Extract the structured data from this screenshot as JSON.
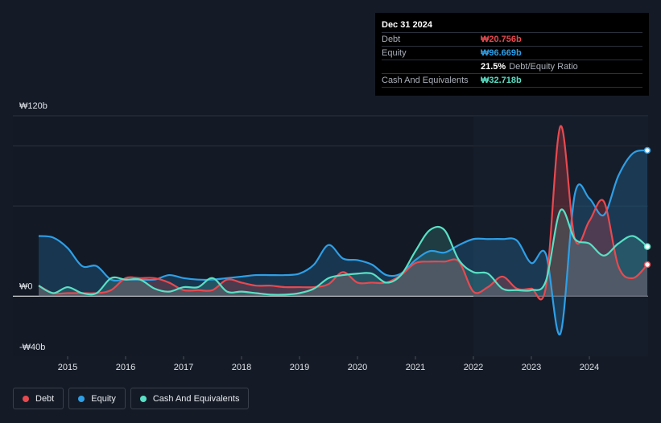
{
  "tooltip": {
    "date": "Dec 31 2024",
    "rows": [
      {
        "label": "Debt",
        "value": "₩20.756b",
        "color": "#e8494f"
      },
      {
        "label": "Equity",
        "value": "₩96.669b",
        "color": "#2e9fe6"
      },
      {
        "label": "",
        "value": "21.5%",
        "extra": "Debt/Equity Ratio",
        "color": "#ffffff"
      },
      {
        "label": "Cash And Equivalents",
        "value": "₩32.718b",
        "color": "#59e0c5"
      }
    ]
  },
  "legend": [
    {
      "label": "Debt",
      "color": "#e8494f"
    },
    {
      "label": "Equity",
      "color": "#2e9fe6"
    },
    {
      "label": "Cash And Equivalents",
      "color": "#59e0c5"
    }
  ],
  "chart_data": {
    "type": "area",
    "y_tick_labels": [
      "₩120b",
      "₩0",
      "-₩40b"
    ],
    "ylim": [
      -40,
      120
    ],
    "x_tick_labels": [
      "2015",
      "2016",
      "2017",
      "2018",
      "2019",
      "2020",
      "2021",
      "2022",
      "2023",
      "2024"
    ],
    "xlim": [
      2014.5,
      2025.0
    ],
    "grid": true,
    "legend_position": "bottom-left",
    "series": [
      {
        "name": "Debt",
        "color": "#e8494f",
        "x": [
          2014.5,
          2014.75,
          2015.0,
          2015.25,
          2015.5,
          2015.75,
          2016.0,
          2016.25,
          2016.5,
          2016.75,
          2017.0,
          2017.25,
          2017.5,
          2017.75,
          2018.0,
          2018.25,
          2018.5,
          2018.75,
          2019.0,
          2019.25,
          2019.5,
          2019.75,
          2020.0,
          2020.25,
          2020.5,
          2020.75,
          2021.0,
          2021.25,
          2021.5,
          2021.75,
          2022.0,
          2022.25,
          2022.5,
          2022.75,
          2023.0,
          2023.25,
          2023.5,
          2023.75,
          2024.0,
          2024.25,
          2024.5,
          2024.75,
          2025.0
        ],
        "values": [
          7,
          2,
          2,
          2,
          2,
          4,
          12,
          12,
          12,
          9,
          4,
          4,
          4,
          11,
          9,
          7,
          7,
          6,
          6,
          6,
          8,
          16,
          9,
          9,
          9,
          14,
          22,
          23,
          23,
          23,
          3,
          6,
          13,
          5,
          5,
          6,
          113,
          38,
          50,
          63,
          20,
          12,
          21
        ]
      },
      {
        "name": "Equity",
        "color": "#2e9fe6",
        "x": [
          2014.5,
          2014.75,
          2015.0,
          2015.25,
          2015.5,
          2015.75,
          2016.0,
          2016.25,
          2016.5,
          2016.75,
          2017.0,
          2017.25,
          2017.5,
          2017.75,
          2018.0,
          2018.25,
          2018.5,
          2018.75,
          2019.0,
          2019.25,
          2019.5,
          2019.75,
          2020.0,
          2020.25,
          2020.5,
          2020.75,
          2021.0,
          2021.25,
          2021.5,
          2021.75,
          2022.0,
          2022.25,
          2022.5,
          2022.75,
          2023.0,
          2023.25,
          2023.5,
          2023.75,
          2024.0,
          2024.25,
          2024.5,
          2024.75,
          2025.0
        ],
        "values": [
          40,
          39,
          32,
          20,
          20,
          11,
          11,
          11,
          11,
          14,
          12,
          11,
          11,
          12,
          13,
          14,
          14,
          14,
          15,
          21,
          34,
          25,
          24,
          21,
          14,
          15,
          24,
          30,
          29,
          34,
          38,
          38,
          38,
          37,
          22,
          28,
          -25,
          68,
          65,
          54,
          80,
          95,
          97
        ]
      },
      {
        "name": "Cash And Equivalents",
        "color": "#59e0c5",
        "x": [
          2014.5,
          2014.75,
          2015.0,
          2015.25,
          2015.5,
          2015.75,
          2016.0,
          2016.25,
          2016.5,
          2016.75,
          2017.0,
          2017.25,
          2017.5,
          2017.75,
          2018.0,
          2018.25,
          2018.5,
          2018.75,
          2019.0,
          2019.25,
          2019.5,
          2019.75,
          2020.0,
          2020.25,
          2020.5,
          2020.75,
          2021.0,
          2021.25,
          2021.5,
          2021.75,
          2022.0,
          2022.25,
          2022.5,
          2022.75,
          2023.0,
          2023.25,
          2023.5,
          2023.75,
          2024.0,
          2024.25,
          2024.5,
          2024.75,
          2025.0
        ],
        "values": [
          7,
          2,
          6,
          2,
          2,
          12,
          11,
          11,
          5,
          3,
          6,
          6,
          12,
          3,
          3,
          2,
          1,
          1,
          2,
          5,
          12,
          14,
          15,
          15,
          9,
          14,
          30,
          44,
          44,
          24,
          16,
          15,
          5,
          4,
          4,
          10,
          57,
          38,
          35,
          27,
          35,
          40,
          33
        ]
      }
    ]
  }
}
